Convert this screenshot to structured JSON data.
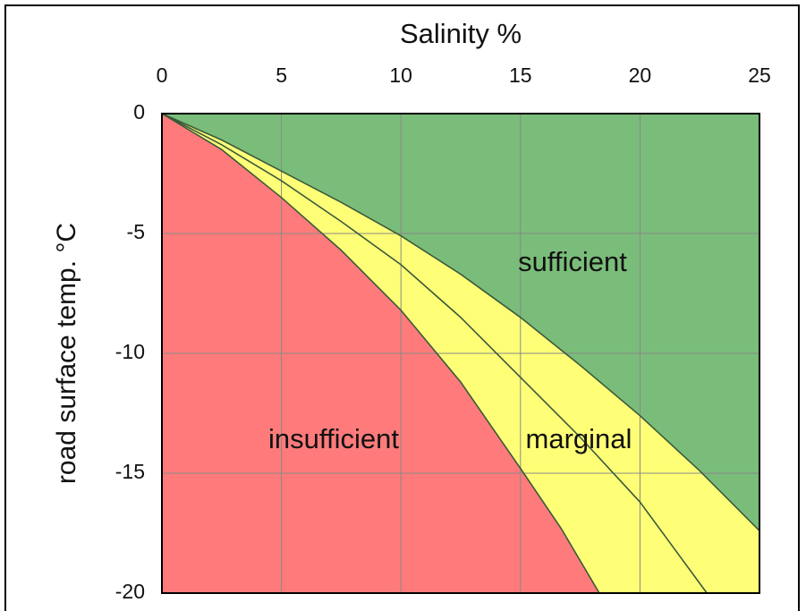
{
  "chart_data": {
    "type": "area",
    "title": "Salinity %",
    "y_label": "road surface temp. °C",
    "xlim": [
      0,
      25
    ],
    "xticks": [
      0,
      5,
      10,
      15,
      20,
      25
    ],
    "ylim": [
      -20,
      0
    ],
    "yticks": [
      0,
      -5,
      -10,
      -15,
      -20
    ],
    "grid": true,
    "line_color": "#3a5a3a",
    "background_color": "#ffff77",
    "series": [
      {
        "x": [
          0,
          2.5,
          5,
          7.5,
          10,
          12.5,
          15,
          17.5,
          20,
          22.5,
          25
        ],
        "values": [
          0,
          -1.1,
          -2.4,
          -3.7,
          -5.1,
          -6.7,
          -8.5,
          -10.5,
          -12.6,
          -14.9,
          -17.4
        ]
      },
      {
        "x": [
          0,
          2.5,
          5,
          7.5,
          10,
          12.5,
          15,
          17.5,
          20,
          22.8
        ],
        "values": [
          0,
          -1.3,
          -2.8,
          -4.5,
          -6.3,
          -8.5,
          -11,
          -13.5,
          -16.2,
          -20
        ]
      },
      {
        "x": [
          0,
          2.5,
          5,
          7.5,
          10,
          12.5,
          15,
          16.7,
          18.3
        ],
        "values": [
          0,
          -1.5,
          -3.5,
          -5.7,
          -8.2,
          -11.2,
          -14.8,
          -17.3,
          -20
        ]
      }
    ],
    "regions": [
      {
        "label": "sufficient",
        "color": "#7abd7a"
      },
      {
        "label": "marginal",
        "color": "#ffff77"
      },
      {
        "label": "insufficient",
        "color": "#ff7b7b"
      }
    ]
  }
}
